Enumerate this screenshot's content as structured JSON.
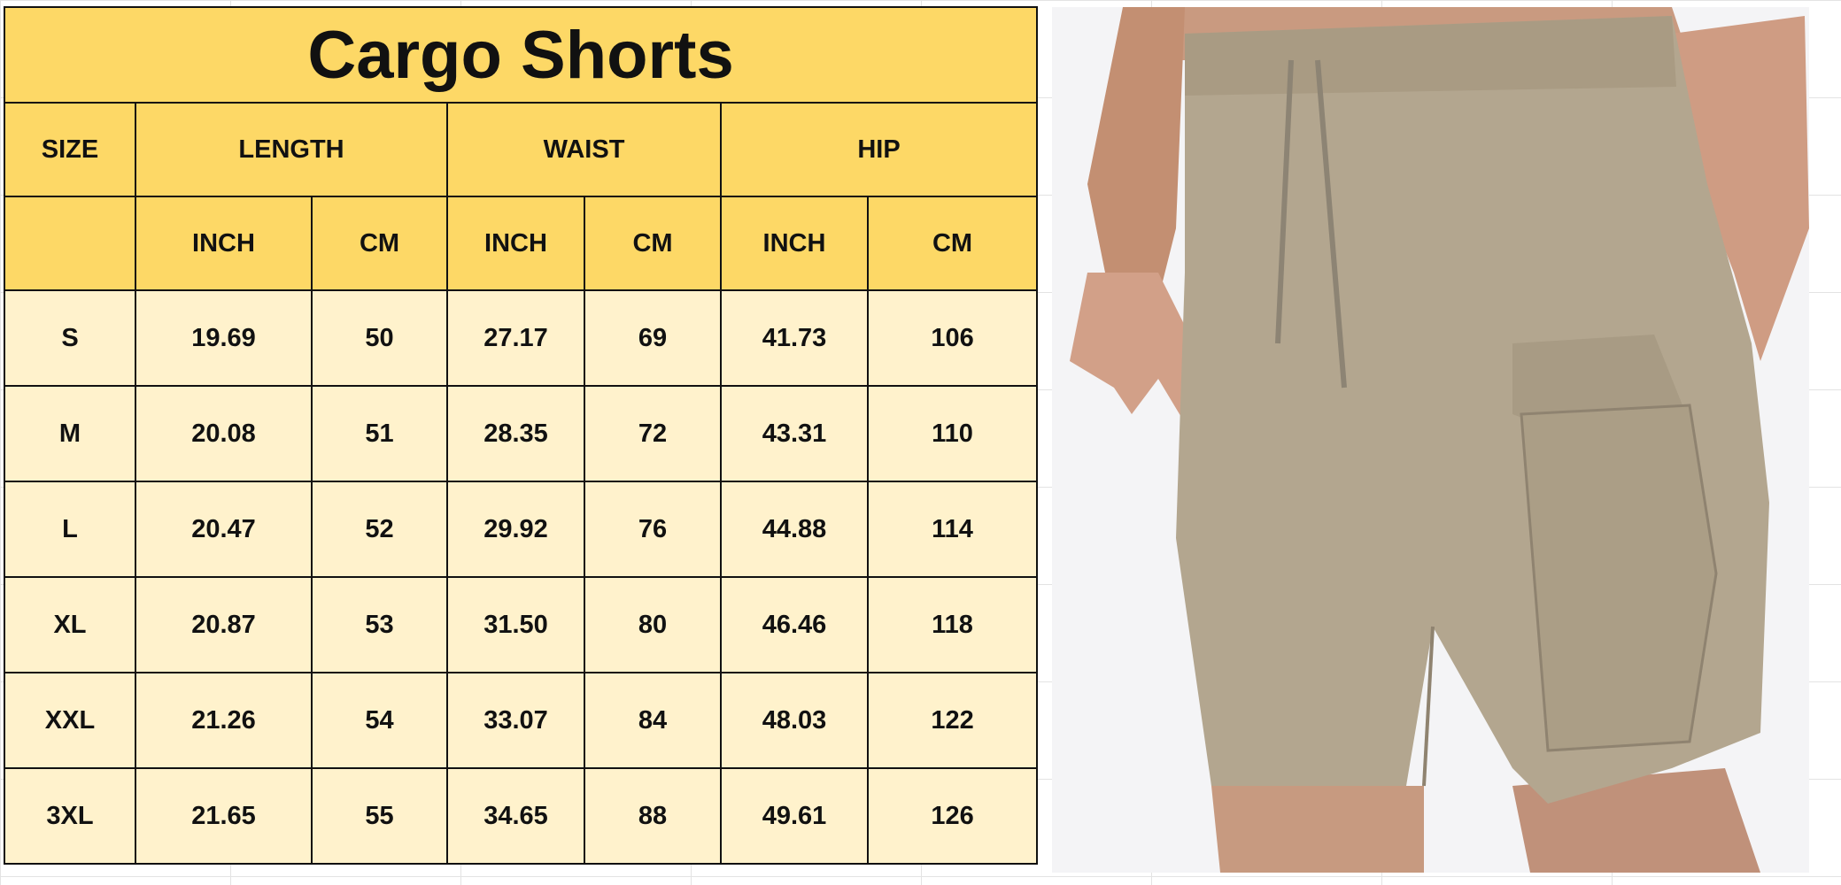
{
  "title": "Cargo Shorts",
  "group_headers": [
    "SIZE",
    "LENGTH",
    "WAIST",
    "HIP"
  ],
  "unit_headers": [
    "INCH",
    "CM",
    "INCH",
    "CM",
    "INCH",
    "CM"
  ],
  "rows": [
    [
      "S",
      "19.69",
      "50",
      "27.17",
      "69",
      "41.73",
      "106"
    ],
    [
      "M",
      "20.08",
      "51",
      "28.35",
      "72",
      "43.31",
      "110"
    ],
    [
      "L",
      "20.47",
      "52",
      "29.92",
      "76",
      "44.88",
      "114"
    ],
    [
      "XL",
      "20.87",
      "53",
      "31.50",
      "80",
      "46.46",
      "118"
    ],
    [
      "XXL",
      "21.26",
      "54",
      "33.07",
      "84",
      "48.03",
      "122"
    ],
    [
      "3XL",
      "21.65",
      "55",
      "34.65",
      "88",
      "49.61",
      "126"
    ]
  ],
  "colors": {
    "header": "#fdd866",
    "body": "#fff2cc",
    "khaki": "#b3a68f"
  }
}
